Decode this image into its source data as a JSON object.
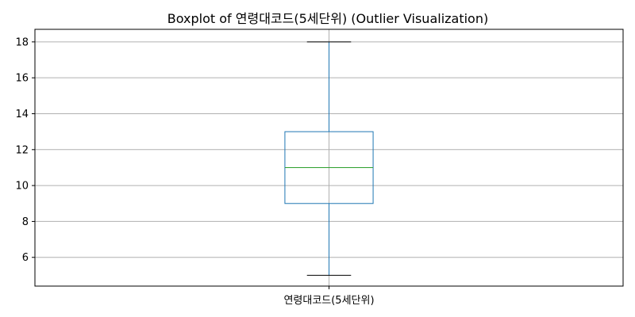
{
  "chart_data": {
    "type": "boxplot",
    "title": "Boxplot of 연령대코드(5세단위) (Outlier Visualization)",
    "categories": [
      "연령대코드(5세단위)"
    ],
    "boxes": [
      {
        "category": "연령대코드(5세단위)",
        "whisker_low": 5,
        "q1": 9,
        "median": 11,
        "q3": 13,
        "whisker_high": 18,
        "outliers": []
      }
    ],
    "ylim": [
      4.4,
      18.7
    ],
    "yticks": [
      6,
      8,
      10,
      12,
      14,
      16,
      18
    ],
    "grid": true,
    "colors": {
      "box": "#1f77b4",
      "median": "#2ca02c",
      "whisker": "#1f77b4",
      "cap": "#000000",
      "grid": "#b0b0b0"
    }
  }
}
